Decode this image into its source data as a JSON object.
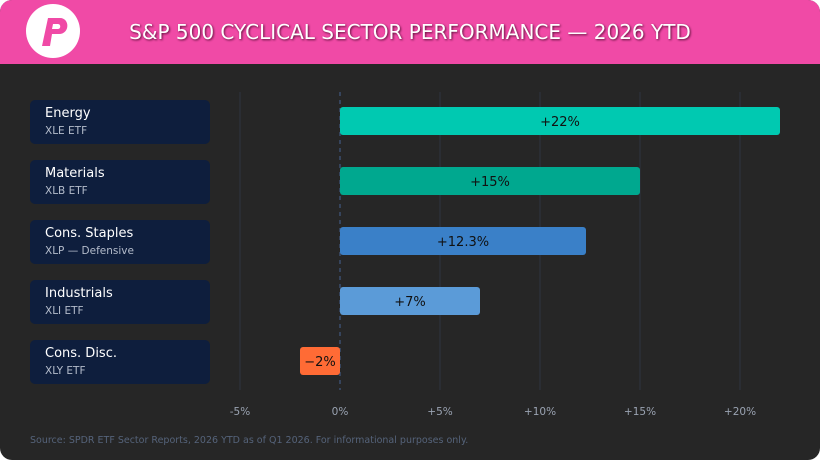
{
  "header": {
    "title": "S&P 500 CYCLICAL SECTOR PERFORMANCE — 2026 YTD",
    "brand_color": "#f04aa6"
  },
  "chart_data": {
    "type": "bar",
    "orientation": "horizontal",
    "title": "S&P 500 CYCLICAL SECTOR PERFORMANCE — 2026 YTD",
    "categories": [
      {
        "name": "Energy",
        "sub": "XLE ETF"
      },
      {
        "name": "Materials",
        "sub": "XLB ETF"
      },
      {
        "name": "Cons. Staples",
        "sub": "XLP — Defensive"
      },
      {
        "name": "Industrials",
        "sub": "XLI ETF"
      },
      {
        "name": "Cons. Disc.",
        "sub": "XLY ETF"
      }
    ],
    "values": [
      22,
      15,
      12.3,
      7,
      -2
    ],
    "data_labels": [
      "+22%",
      "+15%",
      "+12.3%",
      "+7%",
      "−2%"
    ],
    "colors": [
      "#00c9b1",
      "#00a88f",
      "#3a80c8",
      "#5b9bd8",
      "#ff6b35"
    ],
    "xlim": [
      -5,
      22
    ],
    "ticks": [
      -5,
      0,
      5,
      10,
      15,
      20
    ],
    "tick_labels": [
      "-5%",
      "0%",
      "+5%",
      "+10%",
      "+15%",
      "+20%"
    ],
    "grid": true
  },
  "footer": {
    "source": "Source: SPDR ETF Sector Reports, 2026 YTD as of Q1 2026. For informational purposes only."
  }
}
